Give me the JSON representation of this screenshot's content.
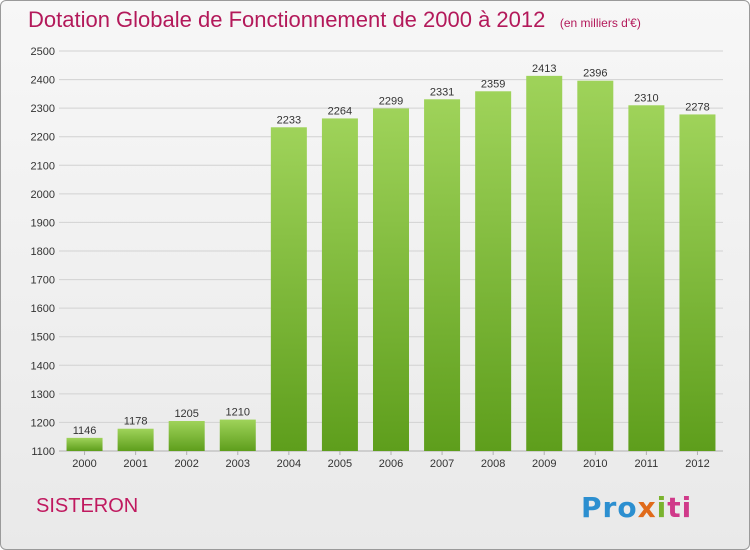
{
  "title": "Dotation Globale de Fonctionnement de 2000 à 2012",
  "unit_note": "(en milliers d'€)",
  "commune": "SISTERON",
  "logo": {
    "text": "Proxiti",
    "parts": [
      "Pro",
      "x",
      "i",
      "ti"
    ]
  },
  "colors": {
    "bar_top": "#9fd35a",
    "bar_bottom": "#5e9e1c",
    "title": "#b3195a"
  },
  "chart_data": {
    "type": "bar",
    "title": "Dotation Globale de Fonctionnement de 2000 à 2012",
    "xlabel": "",
    "ylabel": "",
    "categories": [
      "2000",
      "2001",
      "2002",
      "2003",
      "2004",
      "2005",
      "2006",
      "2007",
      "2008",
      "2009",
      "2010",
      "2011",
      "2012"
    ],
    "values": [
      1146,
      1178,
      1205,
      1210,
      2233,
      2264,
      2299,
      2331,
      2359,
      2413,
      2396,
      2310,
      2278
    ],
    "ylim": [
      1100,
      2500
    ],
    "yticks": [
      1100,
      1200,
      1300,
      1400,
      1500,
      1600,
      1700,
      1800,
      1900,
      2000,
      2100,
      2200,
      2300,
      2400,
      2500
    ],
    "grid": true,
    "legend": "none"
  }
}
